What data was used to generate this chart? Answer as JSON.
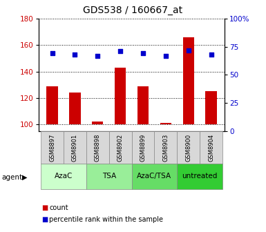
{
  "title": "GDS538 / 160667_at",
  "samples": [
    "GSM8897",
    "GSM8901",
    "GSM8898",
    "GSM8902",
    "GSM8899",
    "GSM8903",
    "GSM8900",
    "GSM8904"
  ],
  "counts": [
    129,
    124,
    102,
    143,
    129,
    101,
    166,
    125
  ],
  "percentiles": [
    69,
    68,
    67,
    71,
    69,
    67,
    72,
    68
  ],
  "groups": [
    {
      "label": "AzaC",
      "indices": [
        0,
        1
      ],
      "color": "#ccffcc"
    },
    {
      "label": "TSA",
      "indices": [
        2,
        3
      ],
      "color": "#99ee99"
    },
    {
      "label": "AzaC/TSA",
      "indices": [
        4,
        5
      ],
      "color": "#66dd66"
    },
    {
      "label": "untreated",
      "indices": [
        6,
        7
      ],
      "color": "#33cc33"
    }
  ],
  "ylim_left": [
    95,
    180
  ],
  "ylim_right": [
    0,
    100
  ],
  "yticks_left": [
    100,
    120,
    140,
    160,
    180
  ],
  "ytick_labels_left": [
    "100",
    "120",
    "140",
    "160",
    "180"
  ],
  "yticks_right": [
    0,
    25,
    50,
    75,
    100
  ],
  "ytick_labels_right": [
    "0",
    "25",
    "50",
    "75",
    "100%"
  ],
  "bar_color": "#cc0000",
  "dot_color": "#0000cc",
  "bar_width": 0.5,
  "baseline": 100,
  "agent_label": "agent",
  "legend_count_label": "count",
  "legend_percentile_label": "percentile rank within the sample",
  "sample_bg_color": "#d8d8d8",
  "sample_border_color": "#888888"
}
